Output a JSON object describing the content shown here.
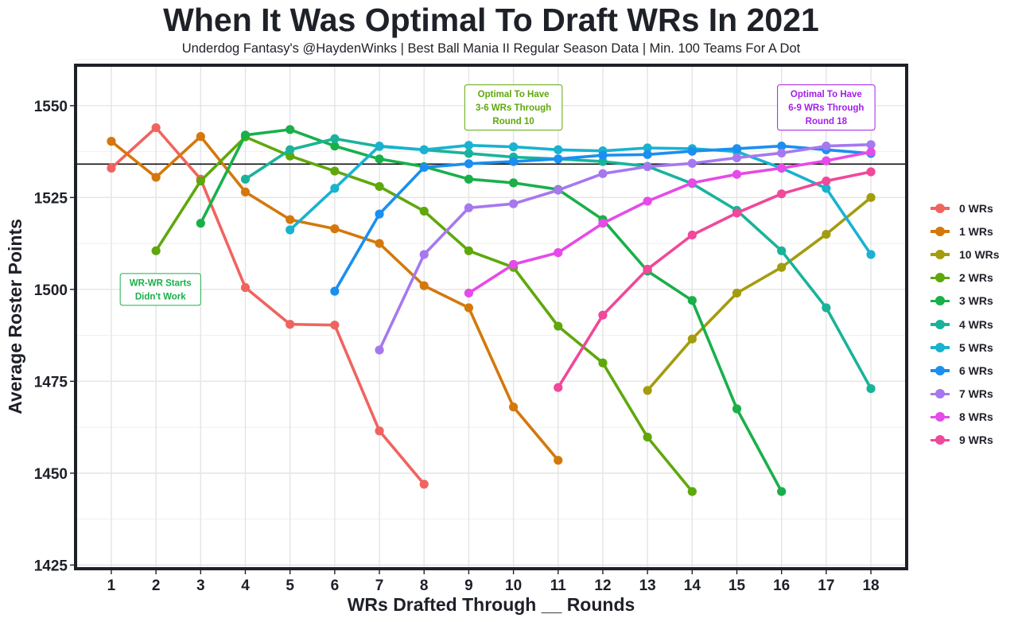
{
  "chart_data": {
    "type": "line",
    "title": "When It Was Optimal To Draft WRs In 2021",
    "subtitle": "Underdog Fantasy's @HaydenWinks | Best Ball Mania II Regular Season Data | Min. 100 Teams For A Dot",
    "xlabel": "WRs Drafted Through __ Rounds",
    "ylabel": "Average Roster Points",
    "x_ticks": [
      1,
      2,
      3,
      4,
      5,
      6,
      7,
      8,
      9,
      10,
      11,
      12,
      13,
      14,
      15,
      16,
      17,
      18
    ],
    "y_ticks": [
      1425,
      1450,
      1475,
      1500,
      1525,
      1550
    ],
    "xlim": [
      0.2,
      18.8
    ],
    "ylim": [
      1424,
      1561
    ],
    "reference_line": 1534.1,
    "legend_position": "right",
    "series": [
      {
        "name": "0 WRs",
        "color": "#f0645f",
        "x": [
          1,
          2,
          3,
          4,
          5,
          6,
          7,
          8
        ],
        "values": [
          1533,
          1544,
          1530,
          1500.5,
          1490.5,
          1490.3,
          1461.5,
          1447
        ]
      },
      {
        "name": "1 WRs",
        "color": "#d4780b",
        "x": [
          1,
          2,
          3,
          4,
          5,
          6,
          7,
          8,
          9,
          10,
          11
        ],
        "values": [
          1540.3,
          1530.5,
          1541.6,
          1526.5,
          1519,
          1516.5,
          1512.5,
          1501,
          1495,
          1468,
          1453.5
        ]
      },
      {
        "name": "10 WRs",
        "color": "#a39c0e",
        "x": [
          13,
          14,
          15,
          16,
          17,
          18
        ],
        "values": [
          1472.5,
          1486.5,
          1499,
          1506,
          1515,
          1525
        ]
      },
      {
        "name": "2 WRs",
        "color": "#5fa80c",
        "x": [
          2,
          3,
          4,
          5,
          6,
          7,
          8,
          9,
          10,
          11,
          12,
          13,
          14
        ],
        "values": [
          1510.5,
          1529.5,
          1541.5,
          1536.3,
          1532.2,
          1528,
          1521.3,
          1510.5,
          1506,
          1490,
          1480,
          1459.8,
          1445
        ]
      },
      {
        "name": "3 WRs",
        "color": "#19b04a",
        "x": [
          3,
          4,
          5,
          6,
          7,
          8,
          9,
          10,
          11,
          12,
          13,
          14,
          15,
          16
        ],
        "values": [
          1518,
          1542,
          1543.5,
          1539,
          1535.5,
          1533.4,
          1530,
          1529,
          1527.2,
          1519,
          1505,
          1497,
          1467.5,
          1445
        ]
      },
      {
        "name": "4 WRs",
        "color": "#1ab39a",
        "x": [
          4,
          5,
          6,
          7,
          8,
          9,
          10,
          11,
          12,
          13,
          14,
          15,
          16,
          17,
          18
        ],
        "values": [
          1530,
          1538,
          1541,
          1538.9,
          1538,
          1537,
          1536,
          1535.5,
          1534.8,
          1533.5,
          1528.8,
          1521.5,
          1510.5,
          1495,
          1473
        ]
      },
      {
        "name": "5 WRs",
        "color": "#19b2d0",
        "x": [
          5,
          6,
          7,
          8,
          9,
          10,
          11,
          12,
          13,
          14,
          15,
          16,
          17,
          18
        ],
        "values": [
          1516.2,
          1527.5,
          1539,
          1538,
          1539.2,
          1538.8,
          1538,
          1537.7,
          1538.5,
          1538.3,
          1537.5,
          1533,
          1527.5,
          1509.5
        ]
      },
      {
        "name": "6 WRs",
        "color": "#1a8ff0",
        "x": [
          6,
          7,
          8,
          9,
          10,
          11,
          12,
          13,
          14,
          15,
          16,
          17,
          18
        ],
        "values": [
          1499.5,
          1520.5,
          1533.2,
          1534.2,
          1534.8,
          1535.5,
          1536.5,
          1536.7,
          1537.6,
          1538.3,
          1539,
          1538,
          1537
        ]
      },
      {
        "name": "7 WRs",
        "color": "#a678ef",
        "x": [
          7,
          8,
          9,
          10,
          11,
          12,
          13,
          14,
          15,
          16,
          17,
          18
        ],
        "values": [
          1483.5,
          1509.5,
          1522.2,
          1523.3,
          1527,
          1531.5,
          1533.4,
          1534.3,
          1535.8,
          1537.1,
          1539,
          1539.4
        ]
      },
      {
        "name": "8 WRs",
        "color": "#e64ae8",
        "x": [
          9,
          10,
          11,
          12,
          13,
          14,
          15,
          16,
          17,
          18
        ],
        "values": [
          1499,
          1506.8,
          1510,
          1518,
          1524,
          1529,
          1531.3,
          1533,
          1535,
          1537.4
        ]
      },
      {
        "name": "9 WRs",
        "color": "#f0489a",
        "x": [
          11,
          12,
          13,
          14,
          15,
          16,
          17,
          18
        ],
        "values": [
          1473.3,
          1493,
          1505.5,
          1514.8,
          1520.8,
          1526,
          1529.5,
          1532
        ]
      }
    ],
    "annotations": [
      {
        "lines": [
          "WR-WR Starts",
          "Didn't Work"
        ],
        "color": "#19b04a"
      },
      {
        "lines": [
          "Optimal To Have",
          "3-6 WRs Through",
          "Round 10"
        ],
        "color": "#5fa80c"
      },
      {
        "lines": [
          "Optimal To Have",
          "6-9 WRs Through",
          "Round 18"
        ],
        "color": "#a21ee6"
      }
    ]
  }
}
